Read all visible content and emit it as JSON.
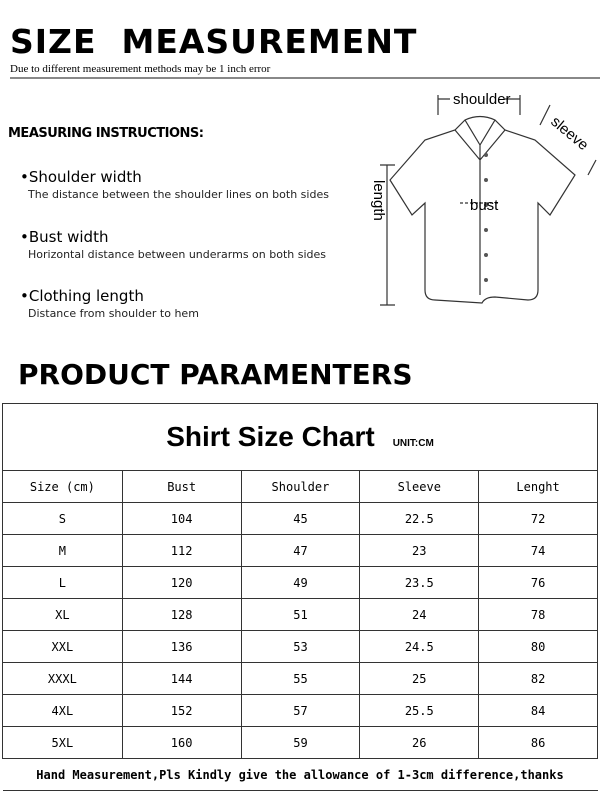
{
  "header": {
    "title": "SIZE  MEASUREMENT",
    "subtitle": "Due to different measurement methods may be 1 inch error"
  },
  "instructions": {
    "heading": "MEASURING INSTRUCTIONS:",
    "items": [
      {
        "title": "•Shoulder width",
        "desc": "The distance between the shoulder lines on both sides"
      },
      {
        "title": "•Bust width",
        "desc": "Horizontal distance between underarms on both sides"
      },
      {
        "title": "•Clothing length",
        "desc": "Distance from shoulder to hem"
      }
    ]
  },
  "diagram": {
    "shoulder": "shoulder",
    "sleeve": "sleeve",
    "length": "length",
    "bust": "bust"
  },
  "product": {
    "heading": "PRODUCT PARAMENTERS"
  },
  "table": {
    "title": "Shirt Size Chart",
    "unit": "UNIT:CM",
    "headers": [
      "Size (cm)",
      "Bust",
      "Shoulder",
      "Sleeve",
      "Lenght"
    ],
    "rows": [
      [
        "S",
        "104",
        "45",
        "22.5",
        "72"
      ],
      [
        "M",
        "112",
        "47",
        "23",
        "74"
      ],
      [
        "L",
        "120",
        "49",
        "23.5",
        "76"
      ],
      [
        "XL",
        "128",
        "51",
        "24",
        "78"
      ],
      [
        "XXL",
        "136",
        "53",
        "24.5",
        "80"
      ],
      [
        "XXXL",
        "144",
        "55",
        "25",
        "82"
      ],
      [
        "4XL",
        "152",
        "57",
        "25.5",
        "84"
      ],
      [
        "5XL",
        "160",
        "59",
        "26",
        "86"
      ]
    ],
    "footer": "Hand Measurement,Pls Kindly give the allowance of 1-3cm difference,thanks"
  }
}
